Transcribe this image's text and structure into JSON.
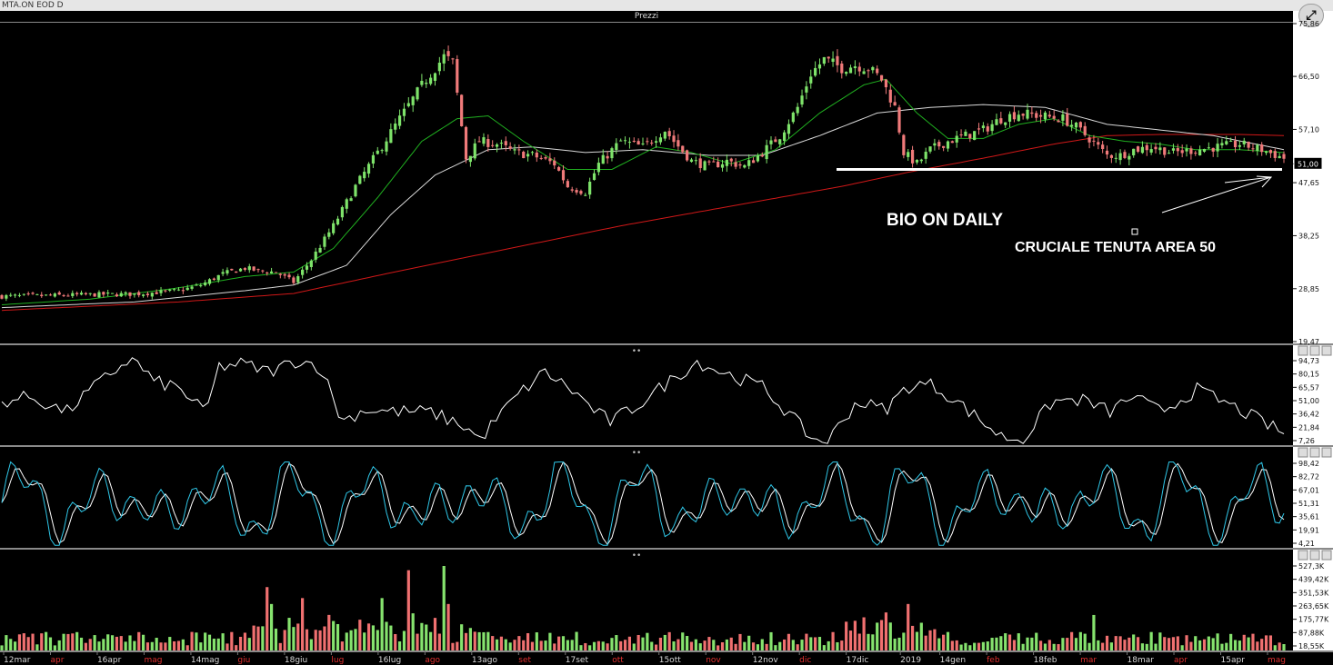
{
  "window_title": "MTA.ON EOD D",
  "panel_title": "Prezzi",
  "annotations": {
    "headline": "BIO ON DAILY",
    "subline": "CRUCIALE TENUTA AREA 50"
  },
  "price_marker": "51,00",
  "colors": {
    "background": "#000000",
    "candle_up": "#7ee36a",
    "candle_down": "#f07a7a",
    "ma_short": "#20b020",
    "ma_mid": "#d8d8d8",
    "ma_long": "#d01818",
    "oscillator": "#ffffff",
    "stoch_k": "#2fc7e8",
    "stoch_d": "#ffffff",
    "volume_up": "#86e36e",
    "volume_down": "#f07070",
    "support_line": "#ffffff"
  },
  "icons": {
    "maximize": "maximize-icon",
    "panel_min": "minimize-icon",
    "panel_restore": "restore-icon"
  },
  "chart_data": [
    {
      "type": "candlestick",
      "panel": "price",
      "title": "Prezzi",
      "ylim": [
        19.47,
        75.86
      ],
      "y_ticks": [
        "75,86",
        "66,50",
        "57,10",
        "51,00",
        "47,65",
        "38,25",
        "28,85",
        "19,47"
      ],
      "x_ticks": [
        {
          "label": "12mar",
          "month": false
        },
        {
          "label": "apr",
          "month": true
        },
        {
          "label": "16apr",
          "month": false
        },
        {
          "label": "mag",
          "month": true
        },
        {
          "label": "14mag",
          "month": false
        },
        {
          "label": "giu",
          "month": true
        },
        {
          "label": "18giu",
          "month": false
        },
        {
          "label": "lug",
          "month": true
        },
        {
          "label": "16lug",
          "month": false
        },
        {
          "label": "ago",
          "month": true
        },
        {
          "label": "13ago",
          "month": false
        },
        {
          "label": "set",
          "month": true
        },
        {
          "label": "17set",
          "month": false
        },
        {
          "label": "ott",
          "month": true
        },
        {
          "label": "15ott",
          "month": false
        },
        {
          "label": "nov",
          "month": true
        },
        {
          "label": "12nov",
          "month": false
        },
        {
          "label": "dic",
          "month": true
        },
        {
          "label": "17dic",
          "month": false
        },
        {
          "label": "2019",
          "month": false
        },
        {
          "label": "14gen",
          "month": false
        },
        {
          "label": "feb",
          "month": true
        },
        {
          "label": "18feb",
          "month": false
        },
        {
          "label": "mar",
          "month": true
        },
        {
          "label": "18mar",
          "month": false
        },
        {
          "label": "apr",
          "month": true
        },
        {
          "label": "15apr",
          "month": false
        },
        {
          "label": "mag",
          "month": true
        }
      ],
      "close_path": [
        [
          0,
          27.5
        ],
        [
          10,
          27.6
        ],
        [
          20,
          27.8
        ],
        [
          30,
          27.9
        ],
        [
          40,
          28.5
        ],
        [
          45,
          29.5
        ],
        [
          50,
          31.5
        ],
        [
          55,
          32.5
        ],
        [
          58,
          32.0
        ],
        [
          62,
          31.8
        ],
        [
          66,
          30.0
        ],
        [
          70,
          34.0
        ],
        [
          75,
          40.0
        ],
        [
          80,
          47.0
        ],
        [
          85,
          53.0
        ],
        [
          90,
          59.0
        ],
        [
          96,
          66.0
        ],
        [
          100,
          70.0
        ],
        [
          102,
          69.0
        ],
        [
          105,
          52.0
        ],
        [
          108,
          55.0
        ],
        [
          112,
          54.5
        ],
        [
          116,
          53.0
        ],
        [
          120,
          52.5
        ],
        [
          125,
          51.0
        ],
        [
          128,
          47.0
        ],
        [
          132,
          46.0
        ],
        [
          135,
          51.0
        ],
        [
          140,
          55.0
        ],
        [
          145,
          54.0
        ],
        [
          150,
          57.0
        ],
        [
          152,
          55.0
        ],
        [
          156,
          51.5
        ],
        [
          160,
          50.5
        ],
        [
          164,
          51.5
        ],
        [
          168,
          50.5
        ],
        [
          172,
          53.0
        ],
        [
          176,
          56.0
        ],
        [
          180,
          61.0
        ],
        [
          183,
          67.0
        ],
        [
          186,
          69.5
        ],
        [
          190,
          68.0
        ],
        [
          193,
          68.5
        ],
        [
          196,
          68.0
        ],
        [
          199,
          66.0
        ],
        [
          202,
          61.0
        ],
        [
          204,
          53.0
        ],
        [
          207,
          51.0
        ],
        [
          210,
          53.5
        ],
        [
          214,
          55.0
        ],
        [
          218,
          56.0
        ],
        [
          222,
          57.0
        ],
        [
          226,
          59.0
        ],
        [
          230,
          60.0
        ],
        [
          235,
          59.5
        ],
        [
          240,
          59.0
        ],
        [
          243,
          57.5
        ],
        [
          246,
          55.5
        ],
        [
          250,
          52.5
        ],
        [
          253,
          52.5
        ],
        [
          256,
          53.5
        ],
        [
          260,
          54.0
        ],
        [
          265,
          53.0
        ],
        [
          270,
          53.5
        ],
        [
          275,
          54.0
        ],
        [
          280,
          54.5
        ],
        [
          285,
          53.5
        ],
        [
          290,
          52.0
        ]
      ],
      "moving_averages": {
        "short": [
          [
            0,
            26.0
          ],
          [
            20,
            27.0
          ],
          [
            40,
            29.0
          ],
          [
            55,
            31.0
          ],
          [
            66,
            31.8
          ],
          [
            75,
            36.0
          ],
          [
            85,
            45.0
          ],
          [
            95,
            55.0
          ],
          [
            103,
            59.0
          ],
          [
            110,
            59.5
          ],
          [
            118,
            55.0
          ],
          [
            128,
            50.0
          ],
          [
            138,
            50.0
          ],
          [
            148,
            54.0
          ],
          [
            156,
            53.0
          ],
          [
            165,
            51.0
          ],
          [
            175,
            53.5
          ],
          [
            185,
            60.0
          ],
          [
            195,
            65.0
          ],
          [
            200,
            66.0
          ],
          [
            207,
            60.0
          ],
          [
            214,
            55.5
          ],
          [
            222,
            55.5
          ],
          [
            230,
            58.0
          ],
          [
            238,
            59.0
          ],
          [
            246,
            56.0
          ],
          [
            254,
            55.0
          ],
          [
            262,
            54.5
          ],
          [
            270,
            53.5
          ],
          [
            280,
            53.5
          ],
          [
            290,
            53.0
          ]
        ],
        "mid": [
          [
            0,
            25.5
          ],
          [
            30,
            26.5
          ],
          [
            55,
            28.5
          ],
          [
            66,
            29.5
          ],
          [
            78,
            33.0
          ],
          [
            88,
            42.0
          ],
          [
            98,
            49.0
          ],
          [
            110,
            53.5
          ],
          [
            120,
            54.0
          ],
          [
            132,
            53.0
          ],
          [
            145,
            53.5
          ],
          [
            160,
            52.5
          ],
          [
            172,
            52.5
          ],
          [
            185,
            56.0
          ],
          [
            198,
            60.0
          ],
          [
            210,
            61.0
          ],
          [
            222,
            61.5
          ],
          [
            236,
            61.0
          ],
          [
            250,
            58.0
          ],
          [
            262,
            57.0
          ],
          [
            274,
            56.0
          ],
          [
            290,
            53.5
          ]
        ],
        "long": [
          [
            0,
            25.0
          ],
          [
            40,
            26.5
          ],
          [
            66,
            28.0
          ],
          [
            90,
            32.0
          ],
          [
            115,
            36.0
          ],
          [
            140,
            40.0
          ],
          [
            165,
            43.5
          ],
          [
            190,
            47.0
          ],
          [
            205,
            49.5
          ],
          [
            222,
            52.0
          ],
          [
            238,
            54.5
          ],
          [
            250,
            56.0
          ],
          [
            262,
            56.2
          ],
          [
            280,
            56.2
          ],
          [
            290,
            56.0
          ]
        ]
      },
      "support_level": 50.0
    },
    {
      "type": "line",
      "panel": "oscillator",
      "ylim": [
        7.26,
        94.73
      ],
      "y_ticks": [
        "94,73",
        "80,15",
        "65,57",
        "51,00",
        "36,42",
        "21,84",
        "7,26"
      ],
      "values": [
        [
          0,
          50
        ],
        [
          8,
          55
        ],
        [
          14,
          45
        ],
        [
          18,
          40
        ],
        [
          24,
          60
        ],
        [
          30,
          78
        ],
        [
          36,
          95
        ],
        [
          42,
          70
        ],
        [
          48,
          65
        ],
        [
          54,
          48
        ],
        [
          56,
          35
        ],
        [
          60,
          85
        ],
        [
          66,
          88
        ],
        [
          74,
          80
        ],
        [
          82,
          92
        ],
        [
          88,
          85
        ],
        [
          94,
          30
        ],
        [
          100,
          42
        ],
        [
          108,
          40
        ],
        [
          118,
          40
        ],
        [
          128,
          25
        ],
        [
          132,
          12
        ],
        [
          136,
          30
        ],
        [
          142,
          55
        ],
        [
          150,
          80
        ],
        [
          158,
          60
        ],
        [
          164,
          40
        ],
        [
          168,
          30
        ],
        [
          175,
          45
        ],
        [
          186,
          75
        ],
        [
          192,
          90
        ],
        [
          200,
          78
        ],
        [
          210,
          65
        ],
        [
          218,
          35
        ],
        [
          224,
          12
        ],
        [
          228,
          10
        ],
        [
          236,
          50
        ],
        [
          244,
          42
        ],
        [
          250,
          65
        ],
        [
          256,
          68
        ],
        [
          262,
          55
        ],
        [
          270,
          32
        ],
        [
          276,
          15
        ],
        [
          282,
          12
        ],
        [
          290,
          50
        ],
        [
          298,
          52
        ],
        [
          306,
          40
        ],
        [
          312,
          55
        ],
        [
          320,
          40
        ],
        [
          330,
          62
        ],
        [
          340,
          45
        ],
        [
          348,
          30
        ],
        [
          354,
          18
        ]
      ]
    },
    {
      "type": "line",
      "panel": "stochastic",
      "ylim": [
        4.21,
        98.42
      ],
      "y_ticks": [
        "98,42",
        "82,72",
        "67,01",
        "51,31",
        "35,61",
        "19,91",
        "4,21"
      ]
    },
    {
      "type": "bar",
      "panel": "volume",
      "y_ticks": [
        "527,3K",
        "439,42K",
        "351,53K",
        "263,65K",
        "175,77K",
        "87,88K",
        "18,55K"
      ]
    }
  ]
}
